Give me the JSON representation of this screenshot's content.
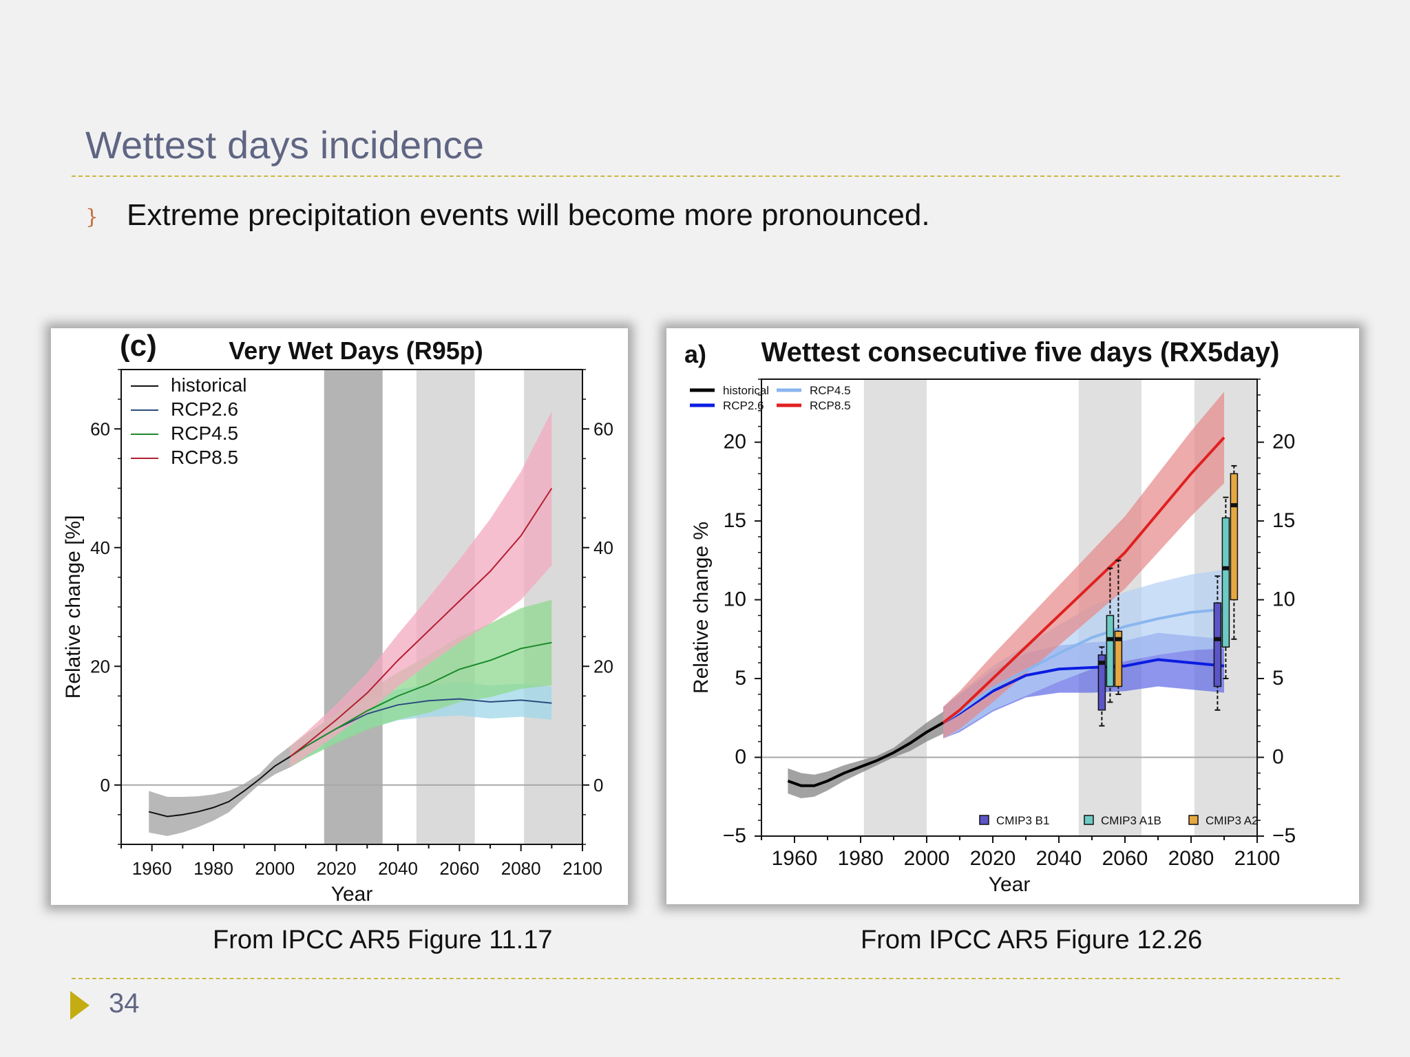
{
  "slide": {
    "title": "Wettest days incidence",
    "bullet": "Extreme precipitation events will become more pronounced.",
    "page_number": "34",
    "accent_color": "#c9b83a"
  },
  "captions": {
    "left": "From IPCC AR5 Figure 11.17",
    "right": "From IPCC AR5 Figure 12.26"
  },
  "chart_data": [
    {
      "type": "line",
      "panel_label": "(c)",
      "title": "Very Wet Days (R95p)",
      "xlabel": "Year",
      "ylabel": "Relative change [%]",
      "xlim": [
        1950,
        2100
      ],
      "ylim": [
        -10,
        70
      ],
      "xticks": [
        1960,
        1980,
        2000,
        2020,
        2040,
        2060,
        2080,
        2100
      ],
      "yticks": [
        0,
        20,
        40,
        60
      ],
      "shaded_periods": [
        [
          2016,
          2035
        ],
        [
          2046,
          2065
        ],
        [
          2081,
          2100
        ]
      ],
      "legend_position": "top-left",
      "series": [
        {
          "name": "historical",
          "color": "#111111",
          "x": [
            1959,
            1965,
            1970,
            1975,
            1980,
            1985,
            1990,
            1995,
            2000,
            2005
          ],
          "y": [
            -4.5,
            -5.3,
            -5.0,
            -4.5,
            -3.8,
            -2.8,
            -1.0,
            1.0,
            3.2,
            4.8
          ],
          "spread": [
            3.5,
            3.3,
            3.0,
            2.6,
            2.2,
            1.8,
            1.2,
            0.9,
            1.4,
            1.8
          ],
          "band_color": "#a0a0a0"
        },
        {
          "name": "RCP2.6",
          "color": "#2b4c7e",
          "x": [
            2005,
            2010,
            2020,
            2030,
            2040,
            2050,
            2060,
            2070,
            2080,
            2090
          ],
          "y": [
            4.8,
            6.5,
            9.5,
            12.0,
            13.5,
            14.2,
            14.5,
            14.0,
            14.3,
            13.8
          ],
          "spread": [
            1.8,
            2.0,
            2.3,
            2.5,
            2.6,
            2.7,
            2.8,
            2.8,
            2.8,
            2.8
          ],
          "band_color": "#9fd7e8"
        },
        {
          "name": "RCP4.5",
          "color": "#1c8a2c",
          "x": [
            2005,
            2010,
            2020,
            2030,
            2040,
            2050,
            2060,
            2070,
            2080,
            2090
          ],
          "y": [
            4.8,
            6.5,
            9.5,
            12.5,
            15.0,
            17.0,
            19.5,
            21.0,
            23.0,
            24.0
          ],
          "spread": [
            1.8,
            2.0,
            2.5,
            3.2,
            4.0,
            4.8,
            5.5,
            6.2,
            6.8,
            7.2
          ],
          "band_color": "#8fd88f"
        },
        {
          "name": "RCP8.5",
          "color": "#b41e32",
          "x": [
            2005,
            2010,
            2020,
            2030,
            2040,
            2050,
            2060,
            2070,
            2080,
            2090
          ],
          "y": [
            4.8,
            6.8,
            11.0,
            15.5,
            21.0,
            26.0,
            31.0,
            36.0,
            42.0,
            50.0
          ],
          "spread": [
            1.8,
            2.0,
            2.6,
            3.4,
            4.4,
            5.6,
            7.0,
            8.8,
            10.8,
            13.0
          ],
          "band_color": "#f3a9bf"
        }
      ]
    },
    {
      "type": "line",
      "panel_label": "a)",
      "title": "Wettest consecutive five days (RX5day)",
      "xlabel": "Year",
      "ylabel": "Relative change %",
      "xlim": [
        1950,
        2100
      ],
      "ylim": [
        -5,
        24
      ],
      "xticks": [
        1960,
        1980,
        2000,
        2020,
        2040,
        2060,
        2080,
        2100
      ],
      "yticks": [
        -5,
        0,
        5,
        10,
        15,
        20
      ],
      "shaded_periods": [
        [
          1981,
          2000
        ],
        [
          2046,
          2065
        ],
        [
          2081,
          2100
        ]
      ],
      "legend_position": "top-left",
      "series": [
        {
          "name": "historical",
          "color": "#000000",
          "x": [
            1958,
            1962,
            1966,
            1970,
            1975,
            1980,
            1985,
            1990,
            1995,
            2000,
            2005
          ],
          "y": [
            -1.5,
            -1.8,
            -1.8,
            -1.5,
            -1.0,
            -0.6,
            -0.2,
            0.3,
            0.9,
            1.6,
            2.2
          ],
          "spread": [
            0.8,
            0.8,
            0.7,
            0.6,
            0.5,
            0.4,
            0.3,
            0.3,
            0.5,
            0.6,
            0.7
          ],
          "band_color": "#7b7b7b"
        },
        {
          "name": "RCP2.6",
          "color": "#0b1de0",
          "x": [
            2005,
            2010,
            2020,
            2030,
            2040,
            2050,
            2060,
            2070,
            2080,
            2090
          ],
          "y": [
            2.2,
            2.8,
            4.2,
            5.2,
            5.6,
            5.7,
            5.8,
            6.2,
            6.0,
            5.8
          ],
          "spread": [
            1.0,
            1.2,
            1.3,
            1.4,
            1.5,
            1.6,
            1.6,
            1.7,
            1.7,
            1.7
          ],
          "band_color": "#5d68e6"
        },
        {
          "name": "RCP4.5",
          "color": "#8ab6ee",
          "x": [
            2005,
            2010,
            2020,
            2030,
            2040,
            2050,
            2060,
            2070,
            2080,
            2090
          ],
          "y": [
            2.2,
            2.9,
            4.4,
            5.5,
            6.6,
            7.6,
            8.3,
            8.8,
            9.2,
            9.4
          ],
          "spread": [
            1.0,
            1.2,
            1.4,
            1.6,
            1.8,
            2.0,
            2.2,
            2.3,
            2.4,
            2.5
          ],
          "band_color": "#b4d0f4"
        },
        {
          "name": "RCP8.5",
          "color": "#e02020",
          "x": [
            2005,
            2010,
            2020,
            2030,
            2040,
            2050,
            2060,
            2070,
            2080,
            2090
          ],
          "y": [
            2.2,
            3.0,
            5.0,
            7.0,
            9.0,
            11.0,
            13.0,
            15.5,
            18.0,
            20.3
          ],
          "spread": [
            1.0,
            1.2,
            1.5,
            1.7,
            1.9,
            2.1,
            2.3,
            2.5,
            2.7,
            2.9
          ],
          "band_color": "#e58888"
        }
      ],
      "boxplots": {
        "legend": [
          {
            "name": "CMIP3 B1",
            "color": "#5b55c7"
          },
          {
            "name": "CMIP3 A1B",
            "color": "#6ccbc3"
          },
          {
            "name": "CMIP3 A2",
            "color": "#e6a840"
          }
        ],
        "boxes": [
          {
            "series": "CMIP3 B1",
            "x": 2053,
            "q1": 3.0,
            "median": 6.0,
            "q3": 6.5,
            "whisker_low": 2.0,
            "whisker_high": 7.0
          },
          {
            "series": "CMIP3 A1B",
            "x": 2055.5,
            "q1": 4.5,
            "median": 7.5,
            "q3": 9.0,
            "whisker_low": 3.5,
            "whisker_high": 12.0
          },
          {
            "series": "CMIP3 A2",
            "x": 2058,
            "q1": 4.5,
            "median": 7.5,
            "q3": 8.0,
            "whisker_low": 4.0,
            "whisker_high": 12.5
          },
          {
            "series": "CMIP3 B1",
            "x": 2088,
            "q1": 4.5,
            "median": 7.5,
            "q3": 9.8,
            "whisker_low": 3.0,
            "whisker_high": 11.5
          },
          {
            "series": "CMIP3 A1B",
            "x": 2090.5,
            "q1": 7.0,
            "median": 12.0,
            "q3": 15.2,
            "whisker_low": 5.0,
            "whisker_high": 16.5
          },
          {
            "series": "CMIP3 A2",
            "x": 2093,
            "q1": 10.0,
            "median": 16.0,
            "q3": 18.0,
            "whisker_low": 7.5,
            "whisker_high": 18.5
          }
        ]
      }
    }
  ]
}
